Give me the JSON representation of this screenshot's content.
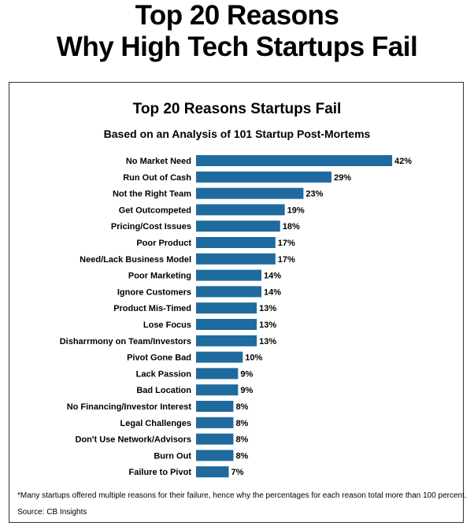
{
  "page": {
    "title_line1": "Top 20 Reasons",
    "title_line2": "Why High Tech Startups Fail",
    "footnote": "*Many startups offered multiple reasons for their failure, hence why the percentages for each reason total more than 100 percent.",
    "source": "Source: CB Insights"
  },
  "chart_data": {
    "type": "bar",
    "orientation": "horizontal",
    "title": "Top 20 Reasons Startups Fail",
    "subtitle": "Based on an Analysis of 101 Startup Post-Mortems",
    "bar_color": "#1f6a9e",
    "categories": [
      "No Market Need",
      "Run Out of Cash",
      "Not the Right Team",
      "Get Outcompeted",
      "Pricing/Cost Issues",
      "Poor Product",
      "Need/Lack Business Model",
      "Poor Marketing",
      "Ignore Customers",
      "Product Mis-Timed",
      "Lose Focus",
      "Disharrmony on Team/Investors",
      "Pivot Gone Bad",
      "Lack Passion",
      "Bad Location",
      "No Financing/Investor Interest",
      "Legal Challenges",
      "Don't Use Network/Advisors",
      "Burn Out",
      "Failure to Pivot"
    ],
    "values": [
      42,
      29,
      23,
      19,
      18,
      17,
      17,
      14,
      14,
      13,
      13,
      13,
      10,
      9,
      9,
      8,
      8,
      8,
      8,
      7
    ],
    "value_labels": [
      "42%",
      "29%",
      "23%",
      "19%",
      "18%",
      "17%",
      "17%",
      "14%",
      "14%",
      "13%",
      "13%",
      "13%",
      "10%",
      "9%",
      "9%",
      "8%",
      "8%",
      "8%",
      "8%",
      "7%"
    ]
  }
}
